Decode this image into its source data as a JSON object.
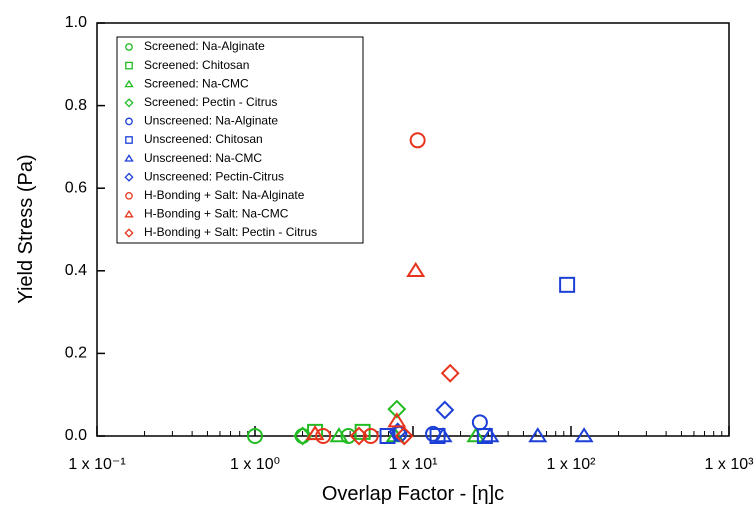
{
  "chart_data": {
    "type": "scatter",
    "x_label": "Overlap Factor - [η]c",
    "y_label": "Yield Stress (Pa)",
    "xscale": "log",
    "xlim": [
      0.1,
      1000
    ],
    "ylim": [
      0,
      1
    ],
    "xticks": [
      {
        "value": 0.1,
        "label": "1 x 10⁻¹"
      },
      {
        "value": 1,
        "label": "1 x 10⁰"
      },
      {
        "value": 10,
        "label": "1 x 10¹"
      },
      {
        "value": 100,
        "label": "1 x 10²"
      },
      {
        "value": 1000,
        "label": "1 x 10³"
      }
    ],
    "yticks": [
      {
        "value": 0,
        "label": "0.0"
      },
      {
        "value": 0.2,
        "label": "0.2"
      },
      {
        "value": 0.4,
        "label": "0.4"
      },
      {
        "value": 0.6,
        "label": "0.6"
      },
      {
        "value": 0.8,
        "label": "0.8"
      },
      {
        "value": 1,
        "label": "1.0"
      }
    ],
    "minor_ticks": true,
    "legend": "upper left",
    "series": [
      {
        "name": "Screened: Na-Alginate",
        "color": "#22bb22",
        "marker": "circle",
        "x": [
          1.0,
          2.0,
          3.9
        ],
        "values": [
          0,
          0,
          0
        ]
      },
      {
        "name": "Screened: Chitosan",
        "color": "#22bb22",
        "marker": "square",
        "x": [
          2.4,
          4.8
        ],
        "values": [
          0.01,
          0.01
        ]
      },
      {
        "name": "Screened: Na-CMC",
        "color": "#22bb22",
        "marker": "triangle",
        "x": [
          3.4,
          7.7,
          25
        ],
        "values": [
          0,
          0,
          0
        ]
      },
      {
        "name": "Screened: Pectin - Citrus",
        "color": "#22bb22",
        "marker": "diamond",
        "x": [
          7.9,
          2.0
        ],
        "values": [
          0.065,
          0
        ]
      },
      {
        "name": "Unscreened: Na-Alginate",
        "color": "#1c3fd6",
        "marker": "circle",
        "x": [
          8.2,
          13.4,
          26.5
        ],
        "values": [
          0.005,
          0.005,
          0.033
        ]
      },
      {
        "name": "Unscreened: Chitosan",
        "color": "#1c3fd6",
        "marker": "square",
        "x": [
          6.9,
          14.3,
          28.5,
          94.5
        ],
        "values": [
          0,
          0,
          0,
          0.366
        ]
      },
      {
        "name": "Unscreened: Na-CMC",
        "color": "#1c3fd6",
        "marker": "triangle",
        "x": [
          15.5,
          30.7,
          61.6,
          121
        ],
        "values": [
          0,
          0,
          0,
          0
        ]
      },
      {
        "name": "Unscreened: Pectin-Citrus",
        "color": "#1c3fd6",
        "marker": "diamond",
        "x": [
          15.9,
          8.0
        ],
        "values": [
          0.063,
          0.01
        ]
      },
      {
        "name": "H-Bonding + Salt: Na-Alginate",
        "color": "#e8341c",
        "marker": "circle",
        "x": [
          10.7,
          2.7,
          5.4
        ],
        "values": [
          0.716,
          0,
          0
        ]
      },
      {
        "name": "H-Bonding + Salt: Na-CMC",
        "color": "#e8341c",
        "marker": "triangle",
        "x": [
          10.4,
          7.9,
          2.4
        ],
        "values": [
          0.4,
          0.036,
          0.005
        ]
      },
      {
        "name": "H-Bonding + Salt: Pectin - Citrus",
        "color": "#e8341c",
        "marker": "diamond",
        "x": [
          17.2,
          8.8,
          4.55
        ],
        "values": [
          0.152,
          0,
          0
        ]
      }
    ]
  }
}
